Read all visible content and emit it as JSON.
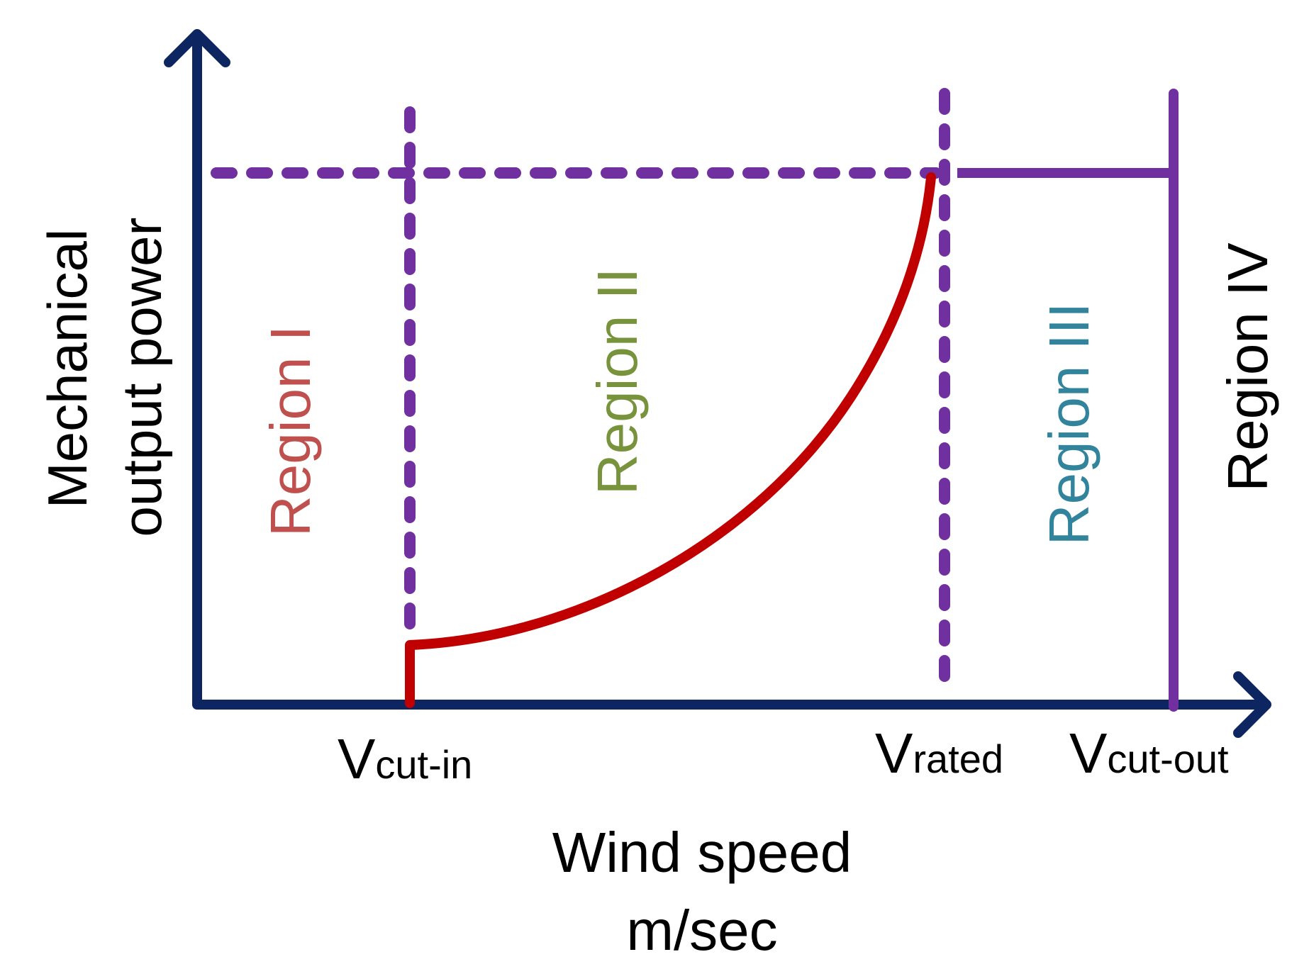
{
  "colors": {
    "axis": "#0d2560",
    "boundary": "#7030a0",
    "curve": "#c00000",
    "region_1": "#c0504d",
    "region_2": "#77933c",
    "region_3": "#31849b",
    "region_4": "#000000",
    "text": "#000000"
  },
  "y_axis_label": {
    "line1": "Mechanical",
    "line2": "output power"
  },
  "x_axis_label": {
    "line1": "Wind speed",
    "line2": "m/sec"
  },
  "markers": {
    "cut_in": {
      "main": "V",
      "sub": "cut-in"
    },
    "rated": {
      "main": "V",
      "sub": "rated"
    },
    "cut_out": {
      "main": "V",
      "sub": "cut-out"
    }
  },
  "regions": {
    "region_1": "Region I",
    "region_2": "Region II",
    "region_3": "Region III",
    "region_4": "Region IV"
  }
}
